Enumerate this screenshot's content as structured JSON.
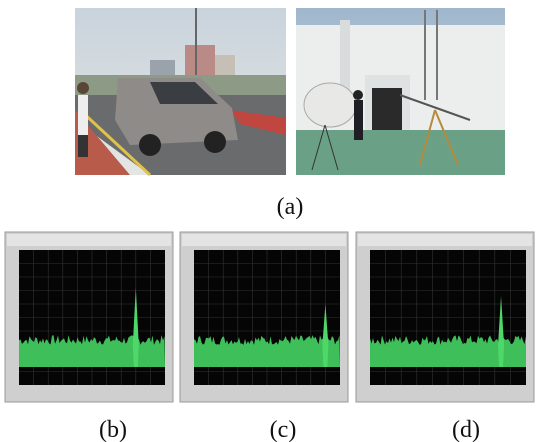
{
  "captions": [
    "(a)",
    "(b)",
    "(c)",
    "(d)"
  ]
}
